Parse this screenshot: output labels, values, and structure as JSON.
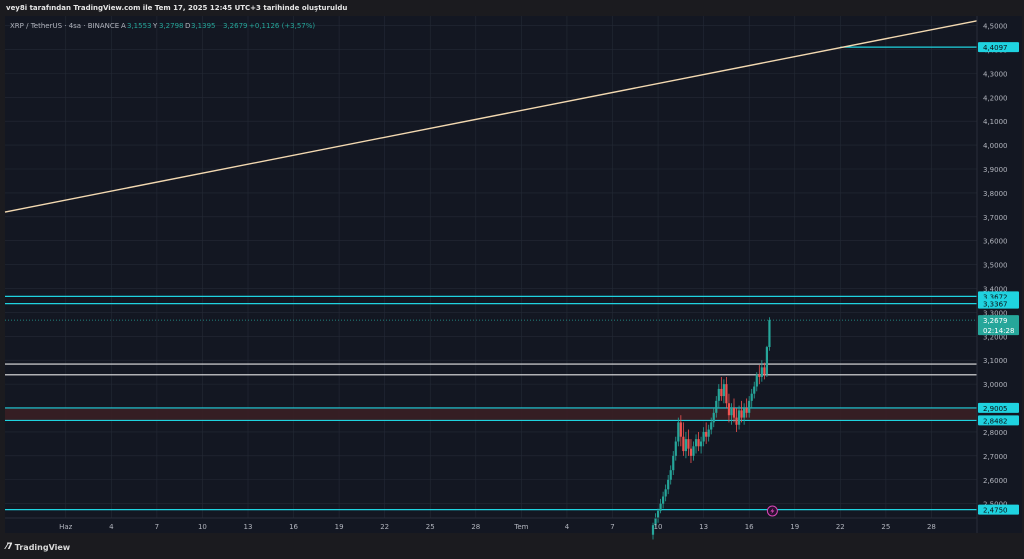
{
  "caption": "vey8i tarafından TradingView.com ile Tem 17, 2025 12:45 UTC+3 tarihinde oluşturuldu",
  "brand": "TradingView",
  "symbol_line": {
    "title": "XRP / TetherUS · 4sa · BINANCE",
    "open_label": "A",
    "open": "3,1553",
    "high_label": "Y",
    "high": "3,2798",
    "low_label": "D",
    "low": "3,1395",
    "close": "3,2679",
    "change": "+0,1126 (+3,57%)"
  },
  "colors": {
    "background": "#131722",
    "grid": "#242a36",
    "axis_text": "#b2b5be",
    "cyan": "#1fd3e0",
    "white_line": "#e6e6e6",
    "trendline": "#f3d9b1",
    "up": "#26a69a",
    "down": "#ef5350",
    "zone_fill": "#3a1f24"
  },
  "chart_data": {
    "type": "candlestick",
    "ylim": [
      2.44,
      4.54
    ],
    "y_ticks": [
      "4,5000",
      "4,4000",
      "4,3000",
      "4,2000",
      "4,1000",
      "4,0000",
      "3,9000",
      "3,8000",
      "3,7000",
      "3,6000",
      "3,5000",
      "3,4000",
      "3,3000",
      "3,2000",
      "3,1000",
      "3,0000",
      "2,9000",
      "2,8000",
      "2,7000",
      "2,6000",
      "2,5000"
    ],
    "y_tick_values": [
      4.5,
      4.4,
      4.3,
      4.2,
      4.1,
      4.0,
      3.9,
      3.8,
      3.7,
      3.6,
      3.5,
      3.4,
      3.3,
      3.2,
      3.1,
      3.0,
      2.9,
      2.8,
      2.7,
      2.6,
      2.5
    ],
    "x_ticks": [
      "Haz",
      "4",
      "7",
      "10",
      "13",
      "16",
      "19",
      "22",
      "25",
      "28",
      "Tem",
      "4",
      "7",
      "10",
      "13",
      "16",
      "19",
      "22",
      "25",
      "28"
    ],
    "x_tick_dates": [
      "2025-06-01",
      "2025-06-04",
      "2025-06-07",
      "2025-06-10",
      "2025-06-13",
      "2025-06-16",
      "2025-06-19",
      "2025-06-22",
      "2025-06-25",
      "2025-06-28",
      "2025-07-01",
      "2025-07-04",
      "2025-07-07",
      "2025-07-10",
      "2025-07-13",
      "2025-07-16",
      "2025-07-19",
      "2025-07-22",
      "2025-07-25",
      "2025-07-28"
    ],
    "x_range": [
      "2025-05-28",
      "2025-07-31"
    ],
    "price_labels": [
      {
        "text": "4,4097",
        "value": 4.4097,
        "color": "#1fd3e0"
      },
      {
        "text": "3,3672",
        "value": 3.3672,
        "color": "#1fd3e0"
      },
      {
        "text": "3,3367",
        "value": 3.3367,
        "color": "#1fd3e0"
      },
      {
        "text": "2,9005",
        "value": 2.9005,
        "color": "#1fd3e0"
      },
      {
        "text": "2,8482",
        "value": 2.8482,
        "color": "#1fd3e0"
      },
      {
        "text": "2,4750",
        "value": 2.475,
        "color": "#1fd3e0"
      }
    ],
    "current_price": {
      "text": "3,2679",
      "value": 3.2679,
      "countdown": "02:14:28",
      "color": "#26a69a"
    },
    "horizontal_lines": [
      {
        "value": 3.3672,
        "color": "#1fd3e0"
      },
      {
        "value": 3.3367,
        "color": "#1fd3e0"
      },
      {
        "value": 3.084,
        "color": "#e6e6e6"
      },
      {
        "value": 3.039,
        "color": "#e6e6e6"
      },
      {
        "value": 2.9005,
        "color": "#1fd3e0"
      },
      {
        "value": 2.8482,
        "color": "#1fd3e0"
      },
      {
        "value": 2.475,
        "color": "#1fd3e0"
      }
    ],
    "zone": {
      "top": 2.9005,
      "bottom": 2.8482
    },
    "trendline": {
      "x1": "2025-05-28",
      "y1": 3.72,
      "x2": "2025-07-31",
      "y2": 4.52
    },
    "ray": {
      "x": "2025-07-22",
      "value": 4.4097
    },
    "series": [
      {
        "t": "2025-07-09T16:00",
        "o": 2.37,
        "h": 2.42,
        "l": 2.35,
        "c": 2.41
      },
      {
        "t": "2025-07-09T20:00",
        "o": 2.41,
        "h": 2.46,
        "l": 2.4,
        "c": 2.44
      },
      {
        "t": "2025-07-10T00:00",
        "o": 2.44,
        "h": 2.48,
        "l": 2.42,
        "c": 2.47
      },
      {
        "t": "2025-07-10T04:00",
        "o": 2.47,
        "h": 2.52,
        "l": 2.46,
        "c": 2.5
      },
      {
        "t": "2025-07-10T08:00",
        "o": 2.5,
        "h": 2.55,
        "l": 2.48,
        "c": 2.53
      },
      {
        "t": "2025-07-10T12:00",
        "o": 2.53,
        "h": 2.58,
        "l": 2.51,
        "c": 2.56
      },
      {
        "t": "2025-07-10T16:00",
        "o": 2.56,
        "h": 2.62,
        "l": 2.54,
        "c": 2.6
      },
      {
        "t": "2025-07-10T20:00",
        "o": 2.6,
        "h": 2.66,
        "l": 2.58,
        "c": 2.64
      },
      {
        "t": "2025-07-11T00:00",
        "o": 2.64,
        "h": 2.72,
        "l": 2.62,
        "c": 2.7
      },
      {
        "t": "2025-07-11T04:00",
        "o": 2.7,
        "h": 2.78,
        "l": 2.68,
        "c": 2.76
      },
      {
        "t": "2025-07-11T08:00",
        "o": 2.76,
        "h": 2.86,
        "l": 2.74,
        "c": 2.84
      },
      {
        "t": "2025-07-11T12:00",
        "o": 2.84,
        "h": 2.87,
        "l": 2.74,
        "c": 2.78
      },
      {
        "t": "2025-07-11T16:00",
        "o": 2.78,
        "h": 2.84,
        "l": 2.7,
        "c": 2.72
      },
      {
        "t": "2025-07-11T20:00",
        "o": 2.72,
        "h": 2.8,
        "l": 2.69,
        "c": 2.77
      },
      {
        "t": "2025-07-12T00:00",
        "o": 2.77,
        "h": 2.81,
        "l": 2.7,
        "c": 2.73
      },
      {
        "t": "2025-07-12T04:00",
        "o": 2.73,
        "h": 2.77,
        "l": 2.67,
        "c": 2.7
      },
      {
        "t": "2025-07-12T08:00",
        "o": 2.7,
        "h": 2.76,
        "l": 2.68,
        "c": 2.74
      },
      {
        "t": "2025-07-12T12:00",
        "o": 2.74,
        "h": 2.79,
        "l": 2.71,
        "c": 2.77
      },
      {
        "t": "2025-07-12T16:00",
        "o": 2.77,
        "h": 2.8,
        "l": 2.72,
        "c": 2.74
      },
      {
        "t": "2025-07-12T20:00",
        "o": 2.74,
        "h": 2.78,
        "l": 2.71,
        "c": 2.76
      },
      {
        "t": "2025-07-13T00:00",
        "o": 2.76,
        "h": 2.82,
        "l": 2.74,
        "c": 2.8
      },
      {
        "t": "2025-07-13T04:00",
        "o": 2.8,
        "h": 2.84,
        "l": 2.75,
        "c": 2.78
      },
      {
        "t": "2025-07-13T08:00",
        "o": 2.78,
        "h": 2.83,
        "l": 2.76,
        "c": 2.81
      },
      {
        "t": "2025-07-13T12:00",
        "o": 2.81,
        "h": 2.86,
        "l": 2.79,
        "c": 2.84
      },
      {
        "t": "2025-07-13T16:00",
        "o": 2.84,
        "h": 2.9,
        "l": 2.82,
        "c": 2.88
      },
      {
        "t": "2025-07-13T20:00",
        "o": 2.88,
        "h": 2.95,
        "l": 2.86,
        "c": 2.93
      },
      {
        "t": "2025-07-14T00:00",
        "o": 2.93,
        "h": 3.0,
        "l": 2.9,
        "c": 2.98
      },
      {
        "t": "2025-07-14T04:00",
        "o": 2.98,
        "h": 3.03,
        "l": 2.93,
        "c": 2.95
      },
      {
        "t": "2025-07-14T08:00",
        "o": 2.95,
        "h": 3.02,
        "l": 2.92,
        "c": 3.0
      },
      {
        "t": "2025-07-14T12:00",
        "o": 3.0,
        "h": 3.03,
        "l": 2.9,
        "c": 2.92
      },
      {
        "t": "2025-07-14T16:00",
        "o": 2.92,
        "h": 2.96,
        "l": 2.84,
        "c": 2.87
      },
      {
        "t": "2025-07-14T20:00",
        "o": 2.87,
        "h": 2.92,
        "l": 2.83,
        "c": 2.9
      },
      {
        "t": "2025-07-15T00:00",
        "o": 2.9,
        "h": 2.94,
        "l": 2.84,
        "c": 2.86
      },
      {
        "t": "2025-07-15T04:00",
        "o": 2.86,
        "h": 2.9,
        "l": 2.8,
        "c": 2.83
      },
      {
        "t": "2025-07-15T08:00",
        "o": 2.83,
        "h": 2.91,
        "l": 2.81,
        "c": 2.89
      },
      {
        "t": "2025-07-15T12:00",
        "o": 2.89,
        "h": 2.93,
        "l": 2.84,
        "c": 2.86
      },
      {
        "t": "2025-07-15T16:00",
        "o": 2.86,
        "h": 2.92,
        "l": 2.83,
        "c": 2.9
      },
      {
        "t": "2025-07-15T20:00",
        "o": 2.9,
        "h": 2.94,
        "l": 2.86,
        "c": 2.88
      },
      {
        "t": "2025-07-16T00:00",
        "o": 2.88,
        "h": 2.95,
        "l": 2.86,
        "c": 2.93
      },
      {
        "t": "2025-07-16T04:00",
        "o": 2.93,
        "h": 2.98,
        "l": 2.9,
        "c": 2.96
      },
      {
        "t": "2025-07-16T08:00",
        "o": 2.96,
        "h": 3.01,
        "l": 2.94,
        "c": 2.99
      },
      {
        "t": "2025-07-16T12:00",
        "o": 2.99,
        "h": 3.05,
        "l": 2.97,
        "c": 3.04
      },
      {
        "t": "2025-07-16T16:00",
        "o": 3.04,
        "h": 3.08,
        "l": 3.0,
        "c": 3.03
      },
      {
        "t": "2025-07-16T20:00",
        "o": 3.03,
        "h": 3.1,
        "l": 3.01,
        "c": 3.07
      },
      {
        "t": "2025-07-17T00:00",
        "o": 3.07,
        "h": 3.09,
        "l": 3.02,
        "c": 3.04
      },
      {
        "t": "2025-07-17T04:00",
        "o": 3.04,
        "h": 3.16,
        "l": 3.03,
        "c": 3.155
      },
      {
        "t": "2025-07-17T08:00",
        "o": 3.1553,
        "h": 3.2798,
        "l": 3.1395,
        "c": 3.2679
      }
    ],
    "bolt_marker": {
      "x": "2025-07-17"
    }
  }
}
